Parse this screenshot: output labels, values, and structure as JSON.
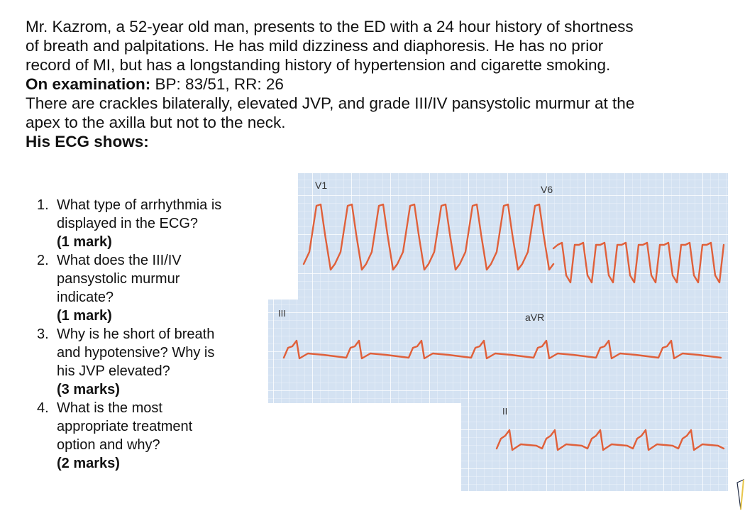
{
  "case": {
    "line1": "Mr. Kazrom, a 52-year old man, presents to the ED with a 24 hour history of shortness",
    "line2": "of breath and palpitations. He has mild dizziness and diaphoresis. He has no prior",
    "line3": "record of MI, but has a longstanding history of hypertension and cigarette smoking.",
    "exam_label": "On examination:",
    "exam_values": " BP: 83/51, RR: 26",
    "line5": "There are crackles bilaterally, elevated JVP, and grade III/IV pansystolic murmur at the",
    "line6": "apex to the axilla but not to the neck.",
    "ecg_heading": "His ECG shows:"
  },
  "questions": [
    {
      "num": "1.",
      "lines": [
        "What type of arrhythmia is",
        "displayed in the ECG?"
      ],
      "marks": "(1 mark)"
    },
    {
      "num": "2.",
      "lines": [
        "What does the III/IV",
        "pansystolic murmur",
        "indicate?"
      ],
      "marks": "(1 mark)"
    },
    {
      "num": "3.",
      "lines": [
        "Why is he short of breath",
        "and hypotensive? Why is",
        "his JVP elevated?"
      ],
      "marks": "(3 marks)"
    },
    {
      "num": "4.",
      "lines": [
        "What is the most",
        "appropriate treatment",
        "option and why?"
      ],
      "marks": "(2 marks)"
    }
  ],
  "ecg": {
    "lead_v1": "V1",
    "lead_v6": "V6",
    "lead_iii": "III",
    "lead_avr": "aVR",
    "lead_ii": "II",
    "grid_color": "#d4e2f2",
    "trace_color": "#e0603a"
  }
}
